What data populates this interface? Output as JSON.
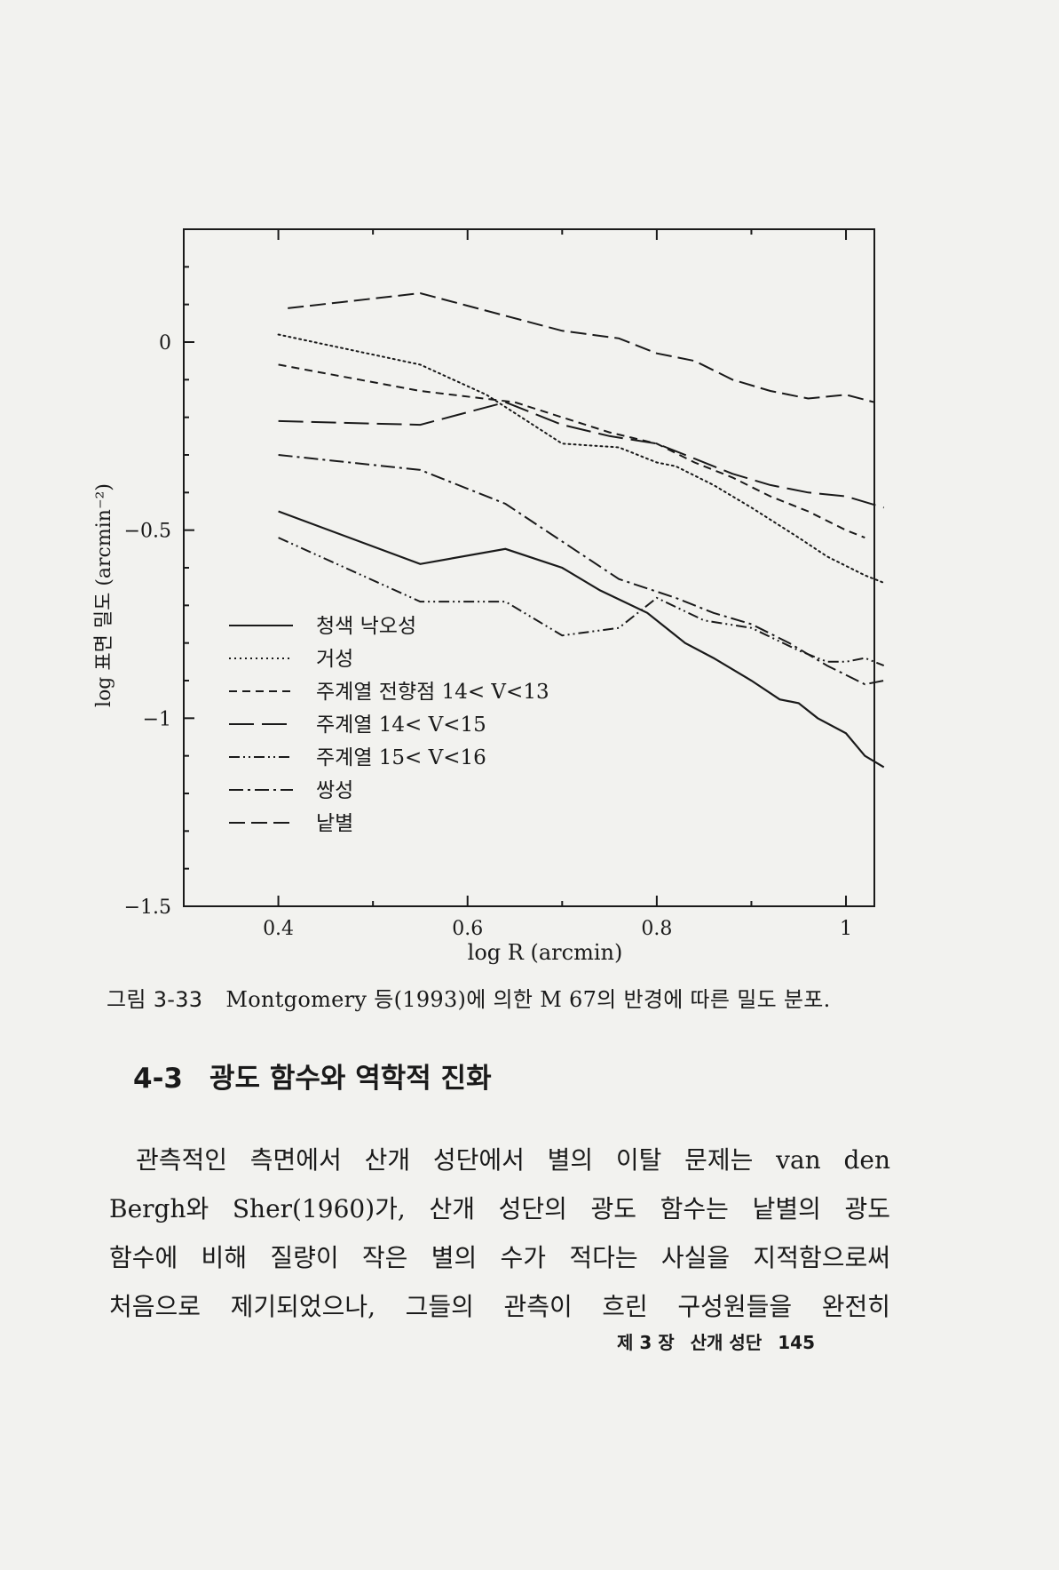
{
  "chart_data": {
    "type": "line",
    "xlabel": "log R (arcmin)",
    "ylabel": "log 표면 밀도 (arcmin⁻²)",
    "xlim": [
      0.3,
      1.03
    ],
    "ylim": [
      -1.5,
      0.3
    ],
    "x_ticks": [
      {
        "value": 0.4,
        "label": "0.4"
      },
      {
        "value": 0.6,
        "label": "0.6"
      },
      {
        "value": 0.8,
        "label": "0.8"
      },
      {
        "value": 1.0,
        "label": "1"
      }
    ],
    "y_ticks": [
      {
        "value": 0,
        "label": "0"
      },
      {
        "value": -0.5,
        "label": "−0.5"
      },
      {
        "value": -1,
        "label": "−1"
      },
      {
        "value": -1.5,
        "label": "−1.5"
      }
    ],
    "x_minor_ticks": [
      0.5,
      0.7,
      0.9
    ],
    "y_minor_ticks": [
      0.2,
      0.1,
      -0.1,
      -0.2,
      -0.3,
      -0.4,
      -0.6,
      -0.7,
      -0.8,
      -0.9,
      -1.1,
      -1.2,
      -1.3,
      -1.4
    ],
    "grid": false,
    "legend_position": "bottom-left",
    "series": [
      {
        "name": "청색 낙오성",
        "dash": "solid",
        "x": [
          0.4,
          0.55,
          0.64,
          0.7,
          0.74,
          0.79,
          0.83,
          0.86,
          0.9,
          0.93,
          0.95,
          0.97,
          1.0,
          1.02,
          1.04
        ],
        "y": [
          -0.45,
          -0.59,
          -0.55,
          -0.6,
          -0.66,
          -0.72,
          -0.8,
          -0.84,
          -0.9,
          -0.95,
          -0.96,
          -1.0,
          -1.04,
          -1.1,
          -1.13
        ]
      },
      {
        "name": "거성",
        "dash": "dotted",
        "x": [
          0.4,
          0.55,
          0.62,
          0.7,
          0.76,
          0.8,
          0.82,
          0.86,
          0.9,
          0.95,
          0.98,
          1.02,
          1.04
        ],
        "y": [
          0.02,
          -0.06,
          -0.14,
          -0.27,
          -0.28,
          -0.32,
          -0.33,
          -0.38,
          -0.44,
          -0.52,
          -0.57,
          -0.62,
          -0.64
        ]
      },
      {
        "name": "주계열 전향점 14< V<13",
        "dash": "short-dash",
        "x": [
          0.4,
          0.55,
          0.65,
          0.7,
          0.75,
          0.8,
          0.84,
          0.88,
          0.92,
          0.96,
          1.0,
          1.02
        ],
        "y": [
          -0.06,
          -0.13,
          -0.16,
          -0.2,
          -0.24,
          -0.27,
          -0.32,
          -0.36,
          -0.41,
          -0.45,
          -0.5,
          -0.52
        ]
      },
      {
        "name": "주계열 14< V<15",
        "dash": "long-dash",
        "x": [
          0.4,
          0.55,
          0.64,
          0.7,
          0.75,
          0.8,
          0.84,
          0.88,
          0.92,
          0.96,
          1.0,
          1.04
        ],
        "y": [
          -0.21,
          -0.22,
          -0.16,
          -0.22,
          -0.25,
          -0.27,
          -0.31,
          -0.35,
          -0.38,
          -0.4,
          -0.41,
          -0.44
        ]
      },
      {
        "name": "주계열 15< V<16",
        "dash": "dash-dot-dot",
        "x": [
          0.4,
          0.55,
          0.64,
          0.7,
          0.76,
          0.8,
          0.85,
          0.9,
          0.95,
          0.98,
          1.0,
          1.02,
          1.04
        ],
        "y": [
          -0.52,
          -0.69,
          -0.69,
          -0.78,
          -0.76,
          -0.68,
          -0.74,
          -0.76,
          -0.82,
          -0.85,
          -0.85,
          -0.84,
          -0.86
        ]
      },
      {
        "name": "쌍성",
        "dash": "dash-dot",
        "x": [
          0.4,
          0.55,
          0.64,
          0.7,
          0.76,
          0.82,
          0.86,
          0.9,
          0.94,
          0.98,
          1.02,
          1.04
        ],
        "y": [
          -0.3,
          -0.34,
          -0.43,
          -0.53,
          -0.63,
          -0.68,
          -0.72,
          -0.75,
          -0.8,
          -0.86,
          -0.91,
          -0.9
        ]
      },
      {
        "name": "낱별",
        "dash": "medium-dash",
        "x": [
          0.41,
          0.55,
          0.64,
          0.7,
          0.76,
          0.8,
          0.84,
          0.88,
          0.92,
          0.96,
          1.0,
          1.03
        ],
        "y": [
          0.09,
          0.13,
          0.07,
          0.03,
          0.01,
          -0.03,
          -0.05,
          -0.1,
          -0.13,
          -0.15,
          -0.14,
          -0.16
        ]
      }
    ]
  },
  "caption": {
    "number": "그림 3-33",
    "text": "Montgomery 등(1993)에 의한 M 67의 반경에 따른 밀도 분포."
  },
  "section": {
    "number": "4-3",
    "title": "광도 함수와 역학적 진화"
  },
  "paragraph_lines": [
    "관측적인 측면에서 산개 성단에서 별의 이탈 문제는 van den",
    "Bergh와 Sher(1960)가, 산개 성단의 광도 함수는 낱별의 광도",
    "함수에 비해 질량이 작은 별의 수가 적다는 사실을 지적함으로써",
    "처음으로 제기되었으나, 그들의 관측이 흐린 구성원들을 완전히"
  ],
  "footer": {
    "chapter": "제 3 장",
    "chapter_title": "산개 성단",
    "page": "145"
  }
}
